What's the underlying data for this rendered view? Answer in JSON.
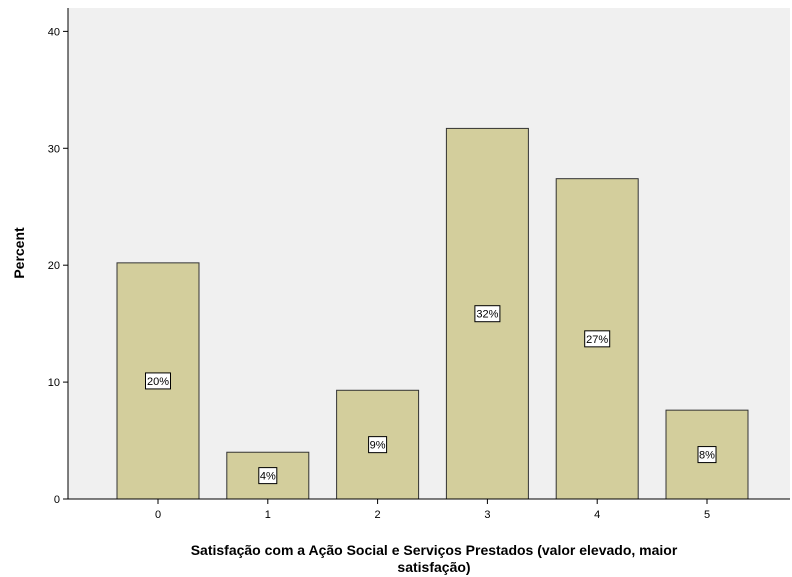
{
  "chart_data": {
    "type": "bar",
    "title": "",
    "xlabel": "Satisfação com a Ação Social e Serviços Prestados (valor elevado, maior satisfação)",
    "xlabel_lines": [
      "Satisfação com a Ação Social e Serviços Prestados (valor elevado, maior",
      "satisfação)"
    ],
    "ylabel": "Percent",
    "categories": [
      "0",
      "1",
      "2",
      "3",
      "4",
      "5"
    ],
    "values": [
      20.2,
      4.0,
      9.3,
      31.7,
      27.4,
      7.6
    ],
    "data_labels": [
      "20%",
      "4%",
      "9%",
      "32%",
      "27%",
      "8%"
    ],
    "ylim": [
      0,
      42
    ],
    "yticks": [
      "0",
      "10",
      "20",
      "30",
      "40"
    ],
    "ytick_values": [
      0,
      10,
      20,
      30,
      40
    ],
    "grid": false,
    "colors": {
      "bar_fill": "#d3ce9c",
      "bar_stroke": "#333333",
      "plot_background": "#f0f0f0"
    }
  }
}
